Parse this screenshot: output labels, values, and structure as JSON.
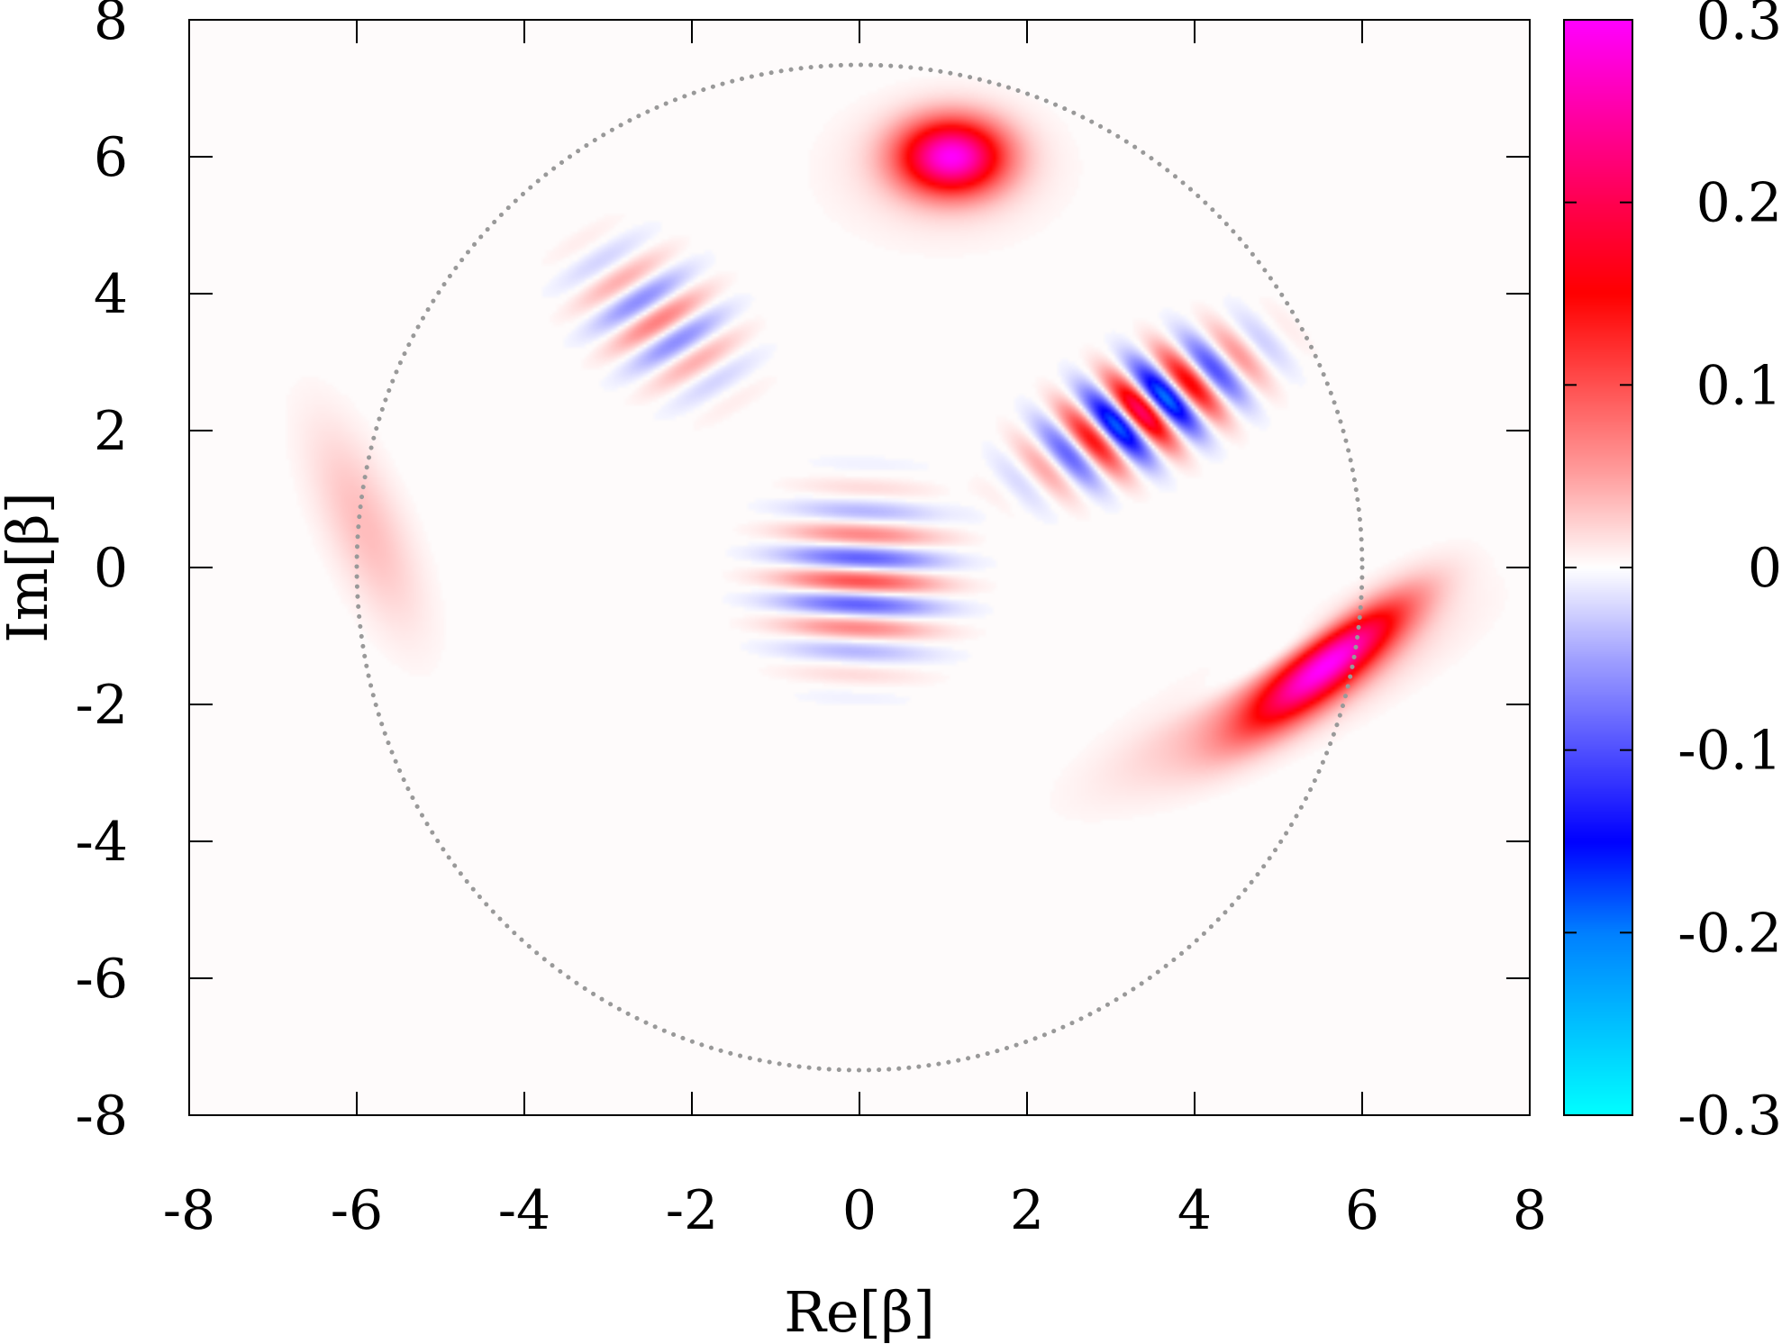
{
  "chart_data": {
    "type": "heatmap",
    "title": "",
    "xlabel": "Re[β]",
    "ylabel": "Im[β]",
    "xlim": [
      -8,
      8
    ],
    "ylim": [
      -8,
      8
    ],
    "x_ticks": [
      -8,
      -6,
      -4,
      -2,
      0,
      2,
      4,
      6,
      8
    ],
    "y_ticks": [
      -8,
      -6,
      -4,
      -2,
      0,
      2,
      4,
      6,
      8
    ],
    "x_tick_labels": [
      "-8",
      "-6",
      "-4",
      "-2",
      "0",
      "2",
      "4",
      "6",
      "8"
    ],
    "y_tick_labels": [
      "-8",
      "-6",
      "-4",
      "-2",
      "0",
      "2",
      "4",
      "6",
      "8"
    ],
    "colorbar": {
      "range": [
        -0.3,
        0.3
      ],
      "ticks": [
        0.3,
        0.2,
        0.1,
        0,
        -0.1,
        -0.2,
        -0.3
      ],
      "tick_labels": [
        "0.3",
        "0.2",
        "0.1",
        "0",
        "-0.1",
        "-0.2",
        "-0.3"
      ],
      "palette": [
        {
          "value": -0.3,
          "color": "#00ffff"
        },
        {
          "value": -0.2,
          "color": "#0080ff"
        },
        {
          "value": -0.15,
          "color": "#0000ff"
        },
        {
          "value": -0.05,
          "color": "#a0a0ff"
        },
        {
          "value": 0,
          "color": "#ffffff"
        },
        {
          "value": 0.05,
          "color": "#ffa0a0"
        },
        {
          "value": 0.15,
          "color": "#ff0000"
        },
        {
          "value": 0.2,
          "color": "#ff0050"
        },
        {
          "value": 0.3,
          "color": "#ff00ff"
        }
      ]
    },
    "reference_circle": {
      "center": [
        0,
        0
      ],
      "radius": 6,
      "style": "dotted",
      "color": "#999999"
    },
    "features": [
      {
        "kind": "gaussian",
        "center": [
          1.1,
          6.0
        ],
        "peak": 0.28,
        "description": "peak"
      },
      {
        "kind": "gaussian",
        "center": [
          5.7,
          -1.4
        ],
        "peak": 0.25,
        "description": "peak"
      },
      {
        "kind": "gaussian",
        "center": [
          -5.9,
          0.6
        ],
        "peak": 0.04,
        "description": "peak"
      },
      {
        "kind": "fringes",
        "center": [
          3.4,
          2.3
        ],
        "amplitude": 0.2,
        "description": "fringes"
      },
      {
        "kind": "fringes",
        "center": [
          -2.4,
          3.6
        ],
        "amplitude": 0.07,
        "description": "fringes"
      },
      {
        "kind": "fringes",
        "center": [
          0.0,
          -0.2
        ],
        "amplitude": 0.1,
        "description": "fringes"
      }
    ]
  }
}
